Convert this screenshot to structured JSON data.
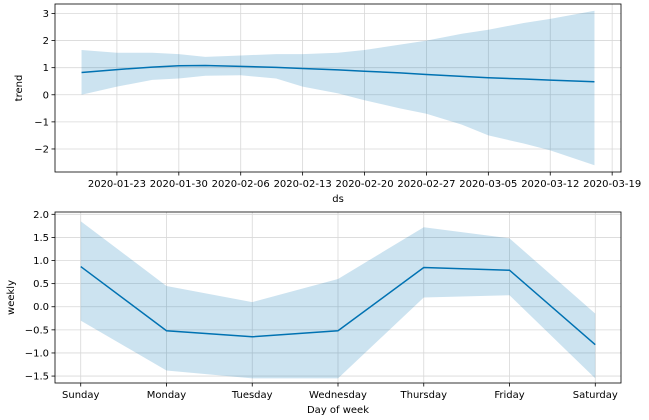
{
  "chart_data": [
    {
      "type": "area",
      "xlabel": "ds",
      "ylabel": "trend",
      "x_is_date": true,
      "xlim": [
        "2020-01-16",
        "2020-03-20"
      ],
      "ylim": [
        -2.85,
        3.35
      ],
      "xticks": [
        "2020-01-23",
        "2020-01-30",
        "2020-02-06",
        "2020-02-13",
        "2020-02-20",
        "2020-02-27",
        "2020-03-05",
        "2020-03-12",
        "2020-03-19"
      ],
      "yticks": [
        -2,
        -1,
        0,
        1,
        2,
        3
      ],
      "grid": true,
      "colors": {
        "line": "#0072B2",
        "band": "#0072B2"
      },
      "series": [
        {
          "x": [
            "2020-01-19",
            "2020-01-23",
            "2020-01-27",
            "2020-01-30",
            "2020-02-02",
            "2020-02-06",
            "2020-02-10",
            "2020-02-13",
            "2020-02-17",
            "2020-02-20",
            "2020-02-24",
            "2020-02-27",
            "2020-03-02",
            "2020-03-05",
            "2020-03-09",
            "2020-03-12",
            "2020-03-17"
          ],
          "y": [
            0.82,
            0.93,
            1.02,
            1.07,
            1.08,
            1.05,
            1.01,
            0.97,
            0.92,
            0.87,
            0.81,
            0.75,
            0.68,
            0.63,
            0.58,
            0.54,
            0.48
          ],
          "lower": [
            0.0,
            0.3,
            0.55,
            0.6,
            0.7,
            0.72,
            0.6,
            0.3,
            0.05,
            -0.2,
            -0.5,
            -0.7,
            -1.1,
            -1.5,
            -1.8,
            -2.05,
            -2.6
          ],
          "upper": [
            1.65,
            1.55,
            1.55,
            1.5,
            1.4,
            1.45,
            1.5,
            1.5,
            1.55,
            1.65,
            1.85,
            2.0,
            2.25,
            2.4,
            2.65,
            2.8,
            3.1
          ]
        }
      ]
    },
    {
      "type": "line",
      "xlabel": "Day of week",
      "ylabel": "weekly",
      "categories": [
        "Sunday",
        "Monday",
        "Tuesday",
        "Wednesday",
        "Thursday",
        "Friday",
        "Saturday"
      ],
      "ylim": [
        -1.65,
        2.05
      ],
      "yticks": [
        -1.5,
        -1.0,
        -0.5,
        0.0,
        0.5,
        1.0,
        1.5,
        2.0
      ],
      "ytick_labels": [
        "−1.5",
        "−1.0",
        "−0.5",
        "0.0",
        "0.5",
        "1.0",
        "1.5",
        "2.0"
      ],
      "grid": true,
      "colors": {
        "line": "#0072B2",
        "band": "#0072B2"
      },
      "series": [
        {
          "values": [
            0.87,
            -0.52,
            -0.65,
            -0.52,
            0.85,
            0.79,
            -0.82
          ],
          "lower": [
            -0.3,
            -1.38,
            -1.55,
            -1.55,
            0.2,
            0.25,
            -1.55
          ],
          "upper": [
            1.85,
            0.45,
            0.1,
            0.6,
            1.72,
            1.48,
            -0.15
          ]
        }
      ]
    }
  ]
}
